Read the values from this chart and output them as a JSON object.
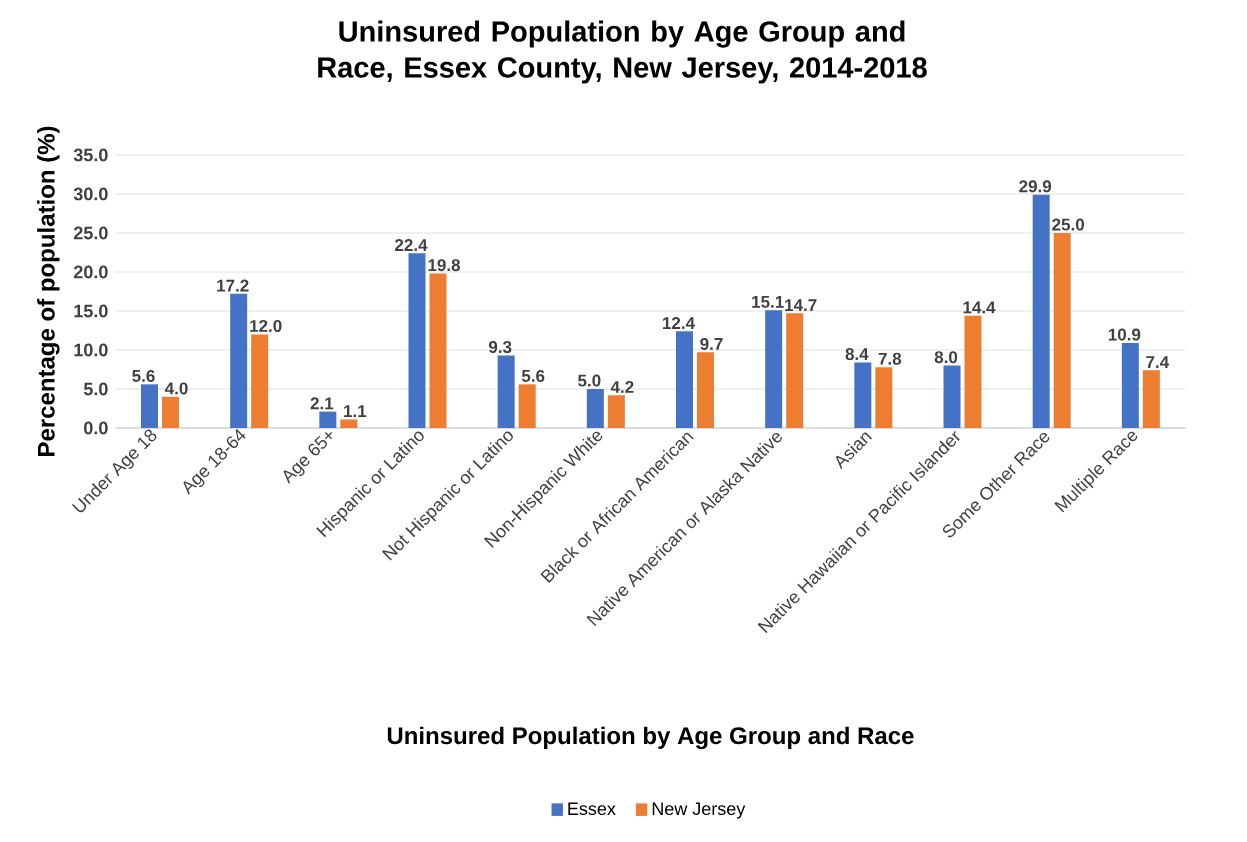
{
  "chart_data": {
    "type": "bar",
    "title": "Uninsured Population by Age Group and Race, Essex County, New Jersey, 2014-2018",
    "xlabel": "Uninsured Population by Age Group and Race",
    "ylabel": "Percentage of population (%)",
    "categories": [
      "Under Age 18",
      "Age 18-64",
      "Age 65+",
      "Hispanic or Latino",
      "Not Hispanic or Latino",
      "Non-Hispanic White",
      "Black or African American",
      "Native American or Alaska Native",
      "Asian",
      "Native Hawaiian or Pacific Islander",
      "Some Other Race",
      "Multiple Race"
    ],
    "series": [
      {
        "name": "Essex",
        "color": "#4472c4",
        "values": [
          5.6,
          17.2,
          2.1,
          22.4,
          9.3,
          5.0,
          12.4,
          15.1,
          8.4,
          8.0,
          29.9,
          10.9
        ],
        "value_labels": [
          "5.6",
          "17.2",
          "2.1",
          "22.4",
          "9.3",
          "5.0",
          "12.4",
          "15.1",
          "8.4",
          "8.0",
          "29.9",
          "10.9"
        ]
      },
      {
        "name": "New Jersey",
        "color": "#ed7d31",
        "values": [
          4.0,
          12.0,
          1.1,
          19.8,
          5.6,
          4.2,
          9.7,
          14.7,
          7.8,
          14.4,
          25.0,
          7.4
        ],
        "value_labels": [
          "4.0",
          "12.0",
          "1.1",
          "19.8",
          "5.6",
          "4.2",
          "9.7",
          "14.7",
          "7.8",
          "14.4",
          "25.0",
          "7.4"
        ]
      }
    ],
    "ylim": [
      0,
      35
    ],
    "yticks": [
      {
        "value": 0,
        "label": "0.0"
      },
      {
        "value": 5,
        "label": "5.0"
      },
      {
        "value": 10,
        "label": "10.0"
      },
      {
        "value": 15,
        "label": "15.0"
      },
      {
        "value": 20,
        "label": "20.0"
      },
      {
        "value": 25,
        "label": "25.0"
      },
      {
        "value": 30,
        "label": "30.0"
      },
      {
        "value": 35,
        "label": "35.0"
      }
    ],
    "grid": "y",
    "legend": "bottom"
  }
}
